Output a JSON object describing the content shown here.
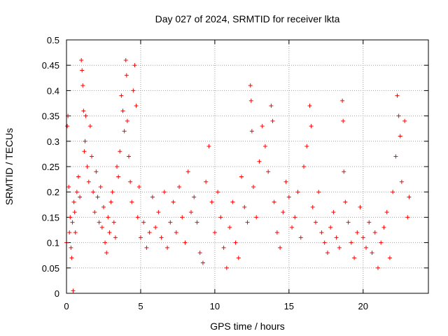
{
  "chart_data": {
    "type": "scatter",
    "title": "Day 027 of 2024, SRMTID for receiver lkta",
    "xlabel": "GPS time / hours",
    "ylabel": "SRMTID / TECUs",
    "xlim": [
      0,
      24.4
    ],
    "ylim": [
      0,
      0.5
    ],
    "xticks": [
      "0",
      "5",
      "10",
      "15",
      "20"
    ],
    "yticks": [
      "0",
      "0.05",
      "0.1",
      "0.15",
      "0.2",
      "0.25",
      "0.3",
      "0.35",
      "0.4",
      "0.45",
      "0.5"
    ],
    "grid": true,
    "marker": "+",
    "marker_color": "#ff0000",
    "series": [
      {
        "points": [
          [
            0.0,
            0.1
          ],
          [
            0.05,
            0.33
          ],
          [
            0.1,
            0.35
          ],
          [
            0.15,
            0.21
          ],
          [
            0.2,
            0.12
          ],
          [
            0.25,
            0.15
          ],
          [
            0.3,
            0.09
          ],
          [
            0.35,
            0.07
          ],
          [
            0.4,
            0.14
          ],
          [
            0.45,
            0.005
          ],
          [
            0.5,
            0.18
          ],
          [
            0.55,
            0.16
          ],
          [
            0.6,
            0.12
          ],
          [
            0.7,
            0.2
          ],
          [
            0.8,
            0.23
          ],
          [
            0.9,
            0.19
          ],
          [
            1.0,
            0.46
          ],
          [
            1.05,
            0.44
          ],
          [
            1.1,
            0.41
          ],
          [
            1.15,
            0.36
          ],
          [
            1.2,
            0.28
          ],
          [
            1.25,
            0.3
          ],
          [
            1.3,
            0.35
          ],
          [
            1.4,
            0.25
          ],
          [
            1.5,
            0.22
          ],
          [
            1.6,
            0.33
          ],
          [
            1.7,
            0.27
          ],
          [
            1.8,
            0.2
          ],
          [
            1.9,
            0.16
          ],
          [
            2.0,
            0.24
          ],
          [
            2.1,
            0.19
          ],
          [
            2.2,
            0.14
          ],
          [
            2.3,
            0.21
          ],
          [
            2.4,
            0.13
          ],
          [
            2.5,
            0.17
          ],
          [
            2.6,
            0.1
          ],
          [
            2.7,
            0.08
          ],
          [
            2.8,
            0.15
          ],
          [
            2.9,
            0.12
          ],
          [
            3.0,
            0.18
          ],
          [
            3.1,
            0.2
          ],
          [
            3.2,
            0.14
          ],
          [
            3.3,
            0.11
          ],
          [
            3.4,
            0.25
          ],
          [
            3.5,
            0.23
          ],
          [
            3.6,
            0.28
          ],
          [
            3.7,
            0.39
          ],
          [
            3.8,
            0.36
          ],
          [
            3.9,
            0.32
          ],
          [
            4.0,
            0.46
          ],
          [
            4.05,
            0.43
          ],
          [
            4.1,
            0.34
          ],
          [
            4.2,
            0.27
          ],
          [
            4.3,
            0.22
          ],
          [
            4.4,
            0.18
          ],
          [
            4.5,
            0.4
          ],
          [
            4.6,
            0.45
          ],
          [
            4.7,
            0.37
          ],
          [
            4.8,
            0.15
          ],
          [
            4.9,
            0.21
          ],
          [
            5.0,
            0.11
          ],
          [
            5.2,
            0.14
          ],
          [
            5.4,
            0.09
          ],
          [
            5.6,
            0.12
          ],
          [
            5.8,
            0.19
          ],
          [
            6.0,
            0.13
          ],
          [
            6.2,
            0.16
          ],
          [
            6.4,
            0.11
          ],
          [
            6.6,
            0.2
          ],
          [
            6.8,
            0.09
          ],
          [
            7.0,
            0.14
          ],
          [
            7.2,
            0.18
          ],
          [
            7.4,
            0.12
          ],
          [
            7.6,
            0.21
          ],
          [
            7.8,
            0.15
          ],
          [
            8.0,
            0.1
          ],
          [
            8.2,
            0.24
          ],
          [
            8.4,
            0.16
          ],
          [
            8.6,
            0.19
          ],
          [
            8.8,
            0.14
          ],
          [
            9.0,
            0.08
          ],
          [
            9.2,
            0.06
          ],
          [
            9.4,
            0.22
          ],
          [
            9.6,
            0.29
          ],
          [
            9.8,
            0.18
          ],
          [
            10.0,
            0.12
          ],
          [
            10.2,
            0.2
          ],
          [
            10.4,
            0.15
          ],
          [
            10.6,
            0.09
          ],
          [
            10.8,
            0.05
          ],
          [
            11.0,
            0.13
          ],
          [
            11.2,
            0.18
          ],
          [
            11.4,
            0.1
          ],
          [
            11.6,
            0.07
          ],
          [
            11.8,
            0.23
          ],
          [
            12.0,
            0.17
          ],
          [
            12.2,
            0.14
          ],
          [
            12.4,
            0.41
          ],
          [
            12.45,
            0.38
          ],
          [
            12.5,
            0.32
          ],
          [
            12.6,
            0.21
          ],
          [
            12.8,
            0.15
          ],
          [
            13.0,
            0.26
          ],
          [
            13.2,
            0.33
          ],
          [
            13.4,
            0.29
          ],
          [
            13.6,
            0.24
          ],
          [
            13.8,
            0.37
          ],
          [
            13.9,
            0.34
          ],
          [
            14.0,
            0.18
          ],
          [
            14.2,
            0.12
          ],
          [
            14.4,
            0.09
          ],
          [
            14.6,
            0.16
          ],
          [
            14.8,
            0.22
          ],
          [
            15.0,
            0.19
          ],
          [
            15.2,
            0.13
          ],
          [
            15.4,
            0.15
          ],
          [
            15.6,
            0.2
          ],
          [
            15.8,
            0.11
          ],
          [
            16.0,
            0.25
          ],
          [
            16.2,
            0.29
          ],
          [
            16.4,
            0.37
          ],
          [
            16.5,
            0.33
          ],
          [
            16.6,
            0.17
          ],
          [
            16.8,
            0.14
          ],
          [
            17.0,
            0.2
          ],
          [
            17.2,
            0.12
          ],
          [
            17.4,
            0.1
          ],
          [
            17.6,
            0.08
          ],
          [
            17.8,
            0.13
          ],
          [
            18.0,
            0.16
          ],
          [
            18.2,
            0.11
          ],
          [
            18.4,
            0.09
          ],
          [
            18.6,
            0.38
          ],
          [
            18.65,
            0.34
          ],
          [
            18.7,
            0.24
          ],
          [
            18.8,
            0.18
          ],
          [
            19.0,
            0.14
          ],
          [
            19.2,
            0.1
          ],
          [
            19.4,
            0.07
          ],
          [
            19.6,
            0.12
          ],
          [
            19.8,
            0.17
          ],
          [
            20.0,
            0.11
          ],
          [
            20.2,
            0.09
          ],
          [
            20.4,
            0.14
          ],
          [
            20.6,
            0.08
          ],
          [
            20.8,
            0.12
          ],
          [
            21.0,
            0.05
          ],
          [
            21.2,
            0.1
          ],
          [
            21.4,
            0.13
          ],
          [
            21.6,
            0.16
          ],
          [
            21.8,
            0.07
          ],
          [
            22.0,
            0.2
          ],
          [
            22.2,
            0.27
          ],
          [
            22.3,
            0.39
          ],
          [
            22.4,
            0.35
          ],
          [
            22.5,
            0.31
          ],
          [
            22.6,
            0.22
          ],
          [
            22.8,
            0.34
          ],
          [
            23.0,
            0.15
          ],
          [
            23.1,
            0.19
          ]
        ]
      }
    ]
  }
}
